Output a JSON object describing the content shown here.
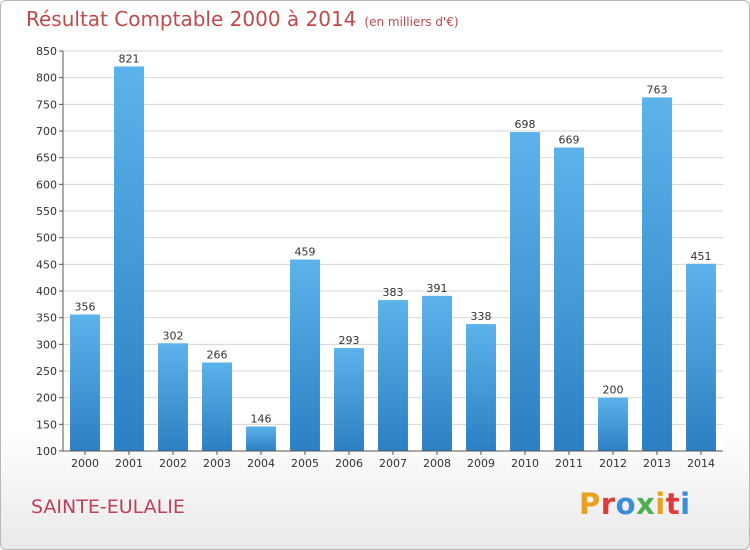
{
  "header": {
    "title": "Résultat Comptable 2000 à 2014",
    "subtitle": "(en milliers d'€)"
  },
  "footer": {
    "commune": "SAINTE-EULALIE",
    "logo_text": "Proxiti",
    "logo_colors": [
      "#e8a020",
      "#e03a3a",
      "#3b8ed6",
      "#4caf50",
      "#e8a020",
      "#e03a3a",
      "#3b8ed6"
    ]
  },
  "colors": {
    "title": "#c04a4a",
    "bar_light": "#5cb3eb",
    "bar_dark": "#2c7fc2",
    "grid": "#d6d6d6",
    "commune": "#c0405a"
  },
  "chart_data": {
    "type": "bar",
    "title": "Résultat Comptable 2000 à 2014",
    "subtitle": "(en milliers d'€)",
    "categories": [
      "2000",
      "2001",
      "2002",
      "2003",
      "2004",
      "2005",
      "2006",
      "2007",
      "2008",
      "2009",
      "2010",
      "2011",
      "2012",
      "2013",
      "2014"
    ],
    "values": [
      356,
      821,
      302,
      266,
      146,
      459,
      293,
      383,
      391,
      338,
      698,
      669,
      200,
      763,
      451
    ],
    "ylim": [
      100,
      850
    ],
    "yticks": [
      100,
      150,
      200,
      250,
      300,
      350,
      400,
      450,
      500,
      550,
      600,
      650,
      700,
      750,
      800,
      850
    ],
    "grid": true,
    "legend": "none"
  }
}
